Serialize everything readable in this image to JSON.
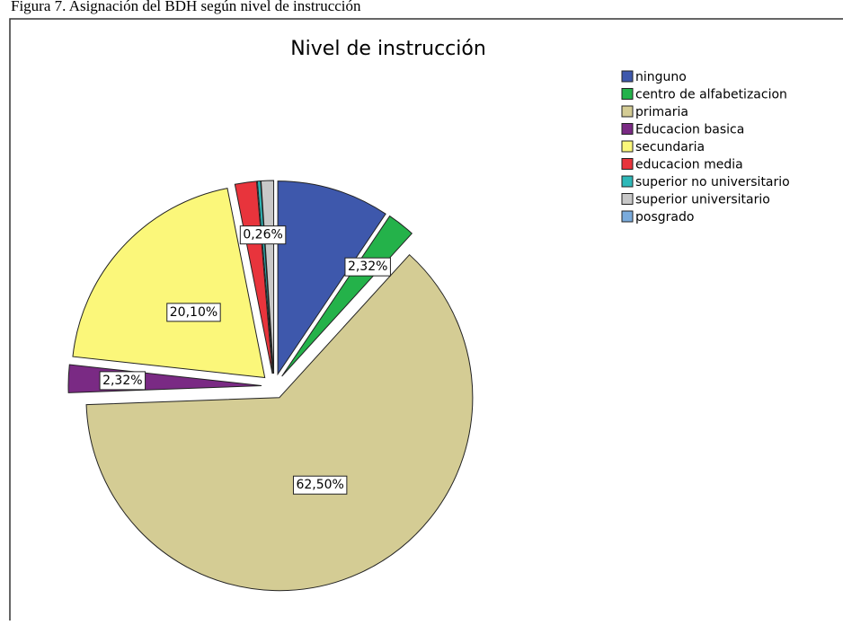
{
  "caption": "Figura 7. Asignación del BDH según nivel de instrucción",
  "chart_data": {
    "type": "pie",
    "title": "Nivel de instrucción",
    "categories": [
      "ninguno",
      "centro de alfabetizacion",
      "primaria",
      "Educacion basica",
      "secundaria",
      "educacion media",
      "superior no universitario",
      "superior universitario",
      "posgrado"
    ],
    "values": [
      9.4,
      2.32,
      62.5,
      2.32,
      20.1,
      1.8,
      0.26,
      1.04,
      0
    ],
    "value_labels": [
      null,
      "2,32%",
      "62,50%",
      "2,32%",
      "20,10%",
      null,
      "0,26%",
      null,
      null
    ],
    "colors": [
      "#3e58ac",
      "#24b24a",
      "#d4cc94",
      "#7a2a84",
      "#fbf77a",
      "#e8343c",
      "#2eb8b8",
      "#c8c8c8",
      "#7aabdc"
    ],
    "legend": "right"
  }
}
